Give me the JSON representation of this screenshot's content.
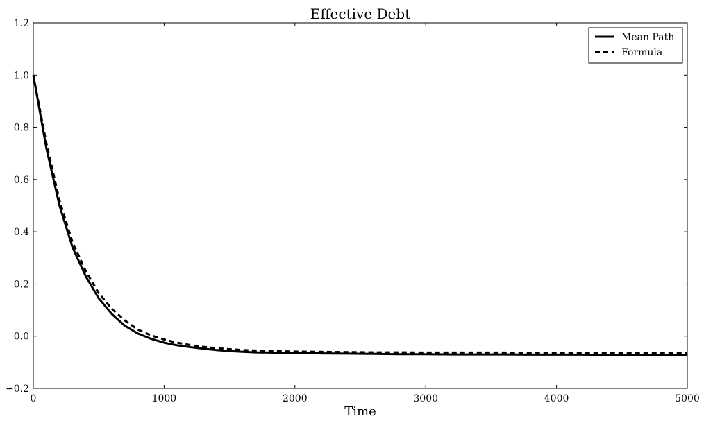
{
  "chart_data": {
    "type": "line",
    "title": "Effective Debt",
    "xlabel": "Time",
    "ylabel": "",
    "xlim": [
      0,
      5000
    ],
    "ylim": [
      -0.2,
      1.2
    ],
    "x_ticks": [
      0,
      1000,
      2000,
      3000,
      4000,
      5000
    ],
    "x_tick_labels": [
      "0",
      "1000",
      "2000",
      "3000",
      "4000",
      "5000"
    ],
    "y_ticks": [
      -0.2,
      0.0,
      0.2,
      0.4,
      0.6,
      0.8,
      1.0,
      1.2
    ],
    "y_tick_labels": [
      "−0.2",
      "0.0",
      "0.2",
      "0.4",
      "0.6",
      "0.8",
      "1.0",
      "1.2"
    ],
    "grid": false,
    "legend_position": "top-right",
    "series": [
      {
        "name": "Mean Path",
        "style": "solid",
        "color": "#000000",
        "x": [
          0,
          100,
          200,
          300,
          400,
          500,
          600,
          700,
          800,
          900,
          1000,
          1100,
          1200,
          1300,
          1400,
          1500,
          1600,
          1700,
          1800,
          1900,
          2000,
          2200,
          2400,
          2600,
          2800,
          3000,
          3200,
          3400,
          3600,
          3800,
          4000,
          4200,
          4400,
          4600,
          4800,
          5000
        ],
        "values": [
          1.0,
          0.72,
          0.5,
          0.34,
          0.23,
          0.145,
          0.085,
          0.04,
          0.01,
          -0.01,
          -0.025,
          -0.035,
          -0.042,
          -0.048,
          -0.053,
          -0.057,
          -0.06,
          -0.062,
          -0.063,
          -0.064,
          -0.064,
          -0.066,
          -0.067,
          -0.068,
          -0.069,
          -0.069,
          -0.07,
          -0.07,
          -0.07,
          -0.071,
          -0.071,
          -0.071,
          -0.072,
          -0.072,
          -0.072,
          -0.073
        ]
      },
      {
        "name": "Formula",
        "style": "dashed",
        "color": "#000000",
        "x": [
          0,
          100,
          200,
          300,
          400,
          500,
          600,
          700,
          800,
          900,
          1000,
          1100,
          1200,
          1300,
          1400,
          1500,
          1600,
          1700,
          1800,
          1900,
          2000,
          2200,
          2400,
          2600,
          2800,
          3000,
          3200,
          3400,
          3600,
          3800,
          4000,
          4200,
          4400,
          4600,
          4800,
          5000
        ],
        "values": [
          1.0,
          0.74,
          0.52,
          0.36,
          0.25,
          0.165,
          0.105,
          0.06,
          0.025,
          0.003,
          -0.013,
          -0.025,
          -0.034,
          -0.041,
          -0.046,
          -0.05,
          -0.053,
          -0.055,
          -0.057,
          -0.058,
          -0.059,
          -0.06,
          -0.061,
          -0.062,
          -0.062,
          -0.063,
          -0.063,
          -0.063,
          -0.063,
          -0.064,
          -0.064,
          -0.064,
          -0.064,
          -0.064,
          -0.064,
          -0.064
        ]
      }
    ]
  }
}
